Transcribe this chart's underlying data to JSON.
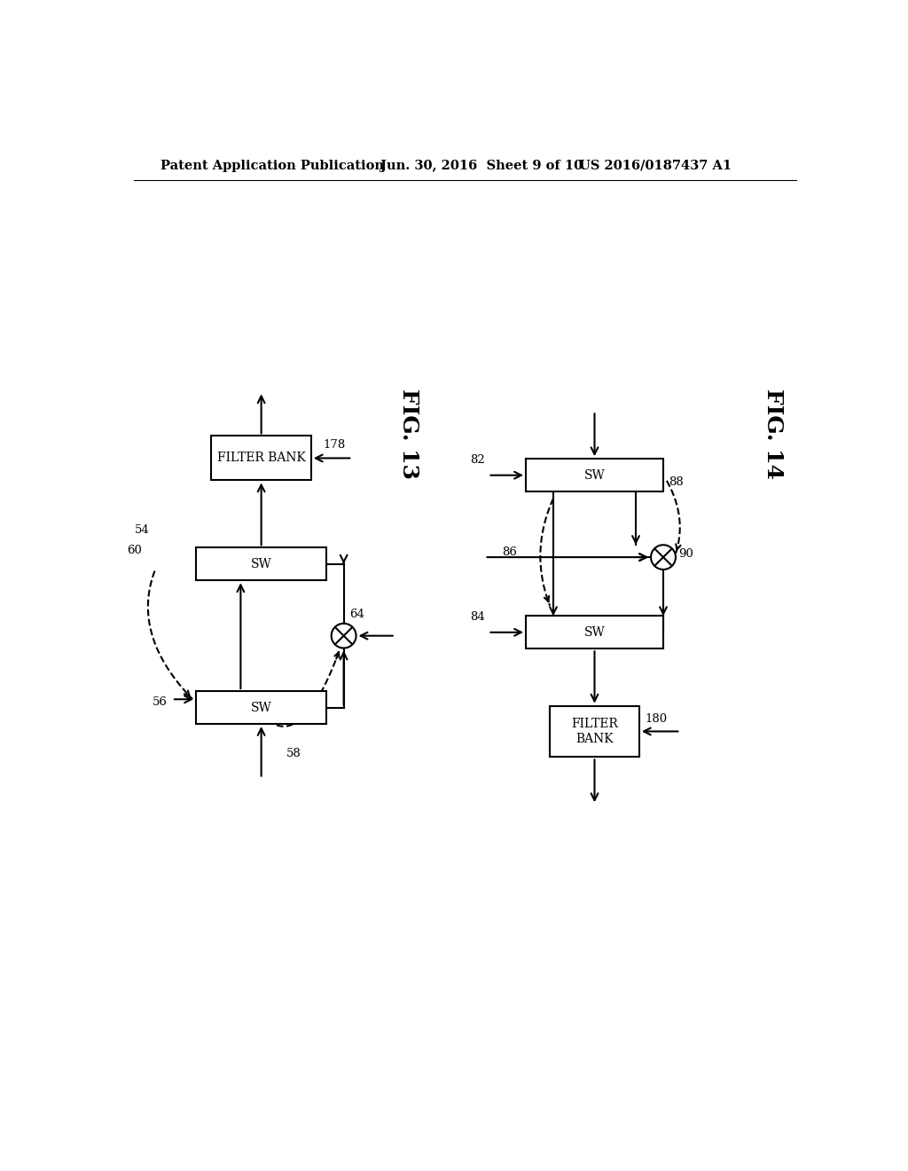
{
  "background_color": "#ffffff",
  "header_left": "Patent Application Publication",
  "header_mid": "Jun. 30, 2016  Sheet 9 of 10",
  "header_right": "US 2016/0187437 A1",
  "fig13_label": "FIG. 13",
  "fig14_label": "FIG. 14",
  "line_color": "#000000",
  "box_fill": "#ffffff",
  "box_edge": "#000000",
  "font_size_header": 10.5,
  "font_size_fig": 18,
  "font_size_label": 9.5,
  "font_size_box": 10
}
